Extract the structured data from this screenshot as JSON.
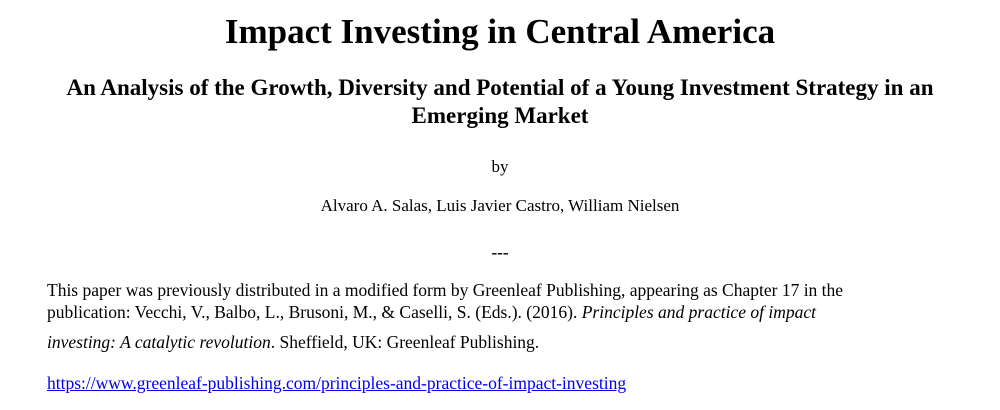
{
  "page": {
    "title": "Impact Investing in Central America",
    "subtitle": "An Analysis of the Growth, Diversity and Potential of a Young Investment Strategy in an Emerging Market",
    "byline_label": "by",
    "authors": "Alvaro A. Salas, Luis Javier Castro, William Nielsen",
    "separator": "---"
  },
  "citation": {
    "line1": "This paper was previously distributed in a modified form by Greenleaf Publishing, appearing as Chapter 17 in the",
    "line2_regular": "publication: Vecchi, V., Balbo, L., Brusoni, M., & Caselli, S. (Eds.). (2016). ",
    "line2_italic": "Principles and practice of impact",
    "line3_italic": "investing: A catalytic revolution",
    "line3_regular": ". Sheffield, UK: Greenleaf Publishing."
  },
  "link": {
    "text": "https://www.greenleaf-publishing.com/principles-and-practice-of-impact-investing",
    "color": "#0000EE"
  }
}
